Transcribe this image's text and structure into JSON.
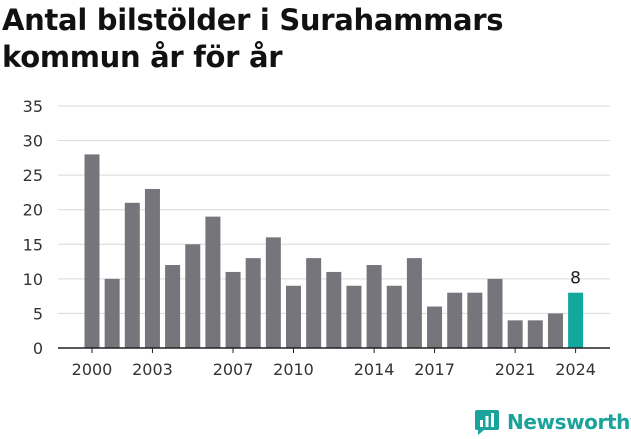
{
  "title": "Antal bilstölder i Surahammars kommun år för år",
  "brand": {
    "name": "Newsworthy",
    "icon": "newsworthy-logo-icon"
  },
  "colors": {
    "bar": "#76757b",
    "highlight": "#13a89e",
    "grid": "#d9d9d9",
    "axis": "#222222",
    "text": "#333333"
  },
  "chart_data": {
    "type": "bar",
    "title": "Antal bilstölder i Surahammars kommun år för år",
    "xlabel": "",
    "ylabel": "",
    "categories": [
      "2000",
      "2001",
      "2002",
      "2003",
      "2004",
      "2005",
      "2006",
      "2007",
      "2008",
      "2009",
      "2010",
      "2011",
      "2012",
      "2013",
      "2014",
      "2015",
      "2016",
      "2017",
      "2018",
      "2019",
      "2020",
      "2021",
      "2022",
      "2023",
      "2024"
    ],
    "values": [
      28,
      10,
      21,
      23,
      12,
      15,
      19,
      11,
      13,
      16,
      9,
      13,
      11,
      9,
      12,
      9,
      13,
      6,
      8,
      8,
      10,
      4,
      4,
      5,
      8
    ],
    "x_tick_labels": [
      "2000",
      "2003",
      "2007",
      "2010",
      "2014",
      "2017",
      "2021",
      "2024"
    ],
    "y_ticks": [
      0,
      5,
      10,
      15,
      20,
      25,
      30,
      35
    ],
    "ylim": [
      0,
      35
    ],
    "grid": true,
    "highlight": {
      "category": "2024",
      "label": "8"
    }
  }
}
